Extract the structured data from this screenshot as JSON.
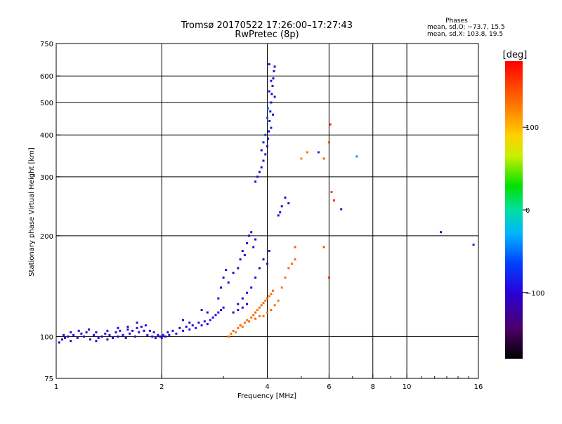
{
  "chart_data": {
    "type": "scatter",
    "title": "Tromsø 20170522 17:26:00–17:27:43",
    "subtitle": "RwPretec (8p)",
    "xlabel": "Frequency [MHz]",
    "ylabel": "Stationary phase Virtual Height [km]",
    "x_scale": "log",
    "y_scale": "log",
    "xlim": [
      1,
      16
    ],
    "ylim": [
      75,
      750
    ],
    "x_ticks": [
      1,
      2,
      4,
      6,
      8,
      10,
      16
    ],
    "x_tick_labels": [
      "1",
      "2",
      "4",
      "6",
      "8",
      "10",
      "16"
    ],
    "y_ticks": [
      75,
      100,
      200,
      300,
      400,
      500,
      600,
      750
    ],
    "y_tick_labels": [
      "75",
      "100",
      "200",
      "300",
      "400",
      "500",
      "600",
      "750"
    ],
    "grid": true,
    "phase_stats": {
      "heading": "Phases",
      "line_o": "mean, sd,O: −73.7, 15.5",
      "line_x": "mean, sd,X: 103.8, 19.5"
    },
    "colorbar": {
      "label": "[deg]",
      "range": [
        -180,
        180
      ],
      "ticks": [
        100,
        0,
        -100
      ],
      "tick_labels": [
        "100",
        "0",
        "−100"
      ]
    },
    "series": [
      {
        "role": "low-band echoes",
        "points": [
          [
            1.02,
            96,
            -95
          ],
          [
            1.04,
            98,
            -100
          ],
          [
            1.06,
            99,
            -98
          ],
          [
            1.08,
            100,
            -105
          ],
          [
            1.1,
            97,
            -92
          ],
          [
            1.12,
            101,
            -100
          ],
          [
            1.15,
            99,
            -96
          ],
          [
            1.18,
            102,
            -104
          ],
          [
            1.2,
            100,
            -95
          ],
          [
            1.22,
            103,
            -100
          ],
          [
            1.25,
            98,
            -90
          ],
          [
            1.28,
            101,
            -102
          ],
          [
            1.3,
            97,
            -100
          ],
          [
            1.32,
            99,
            -88
          ],
          [
            1.35,
            100,
            -100
          ],
          [
            1.38,
            102,
            -95
          ],
          [
            1.4,
            98,
            -110
          ],
          [
            1.42,
            101,
            -98
          ],
          [
            1.45,
            99,
            -94
          ],
          [
            1.48,
            103,
            -100
          ],
          [
            1.5,
            100,
            -96
          ],
          [
            1.52,
            104,
            -100
          ],
          [
            1.55,
            101,
            -92
          ],
          [
            1.58,
            99,
            -98
          ],
          [
            1.6,
            105,
            -100
          ],
          [
            1.62,
            102,
            -94
          ],
          [
            1.65,
            104,
            -100
          ],
          [
            1.68,
            100,
            -90
          ],
          [
            1.7,
            106,
            -98
          ],
          [
            1.72,
            103,
            -92
          ],
          [
            1.75,
            107,
            -96
          ],
          [
            1.78,
            104,
            -100
          ],
          [
            1.8,
            108,
            -94
          ],
          [
            1.82,
            101,
            -90
          ],
          [
            1.85,
            104,
            -98
          ],
          [
            1.88,
            100,
            -92
          ],
          [
            1.9,
            103,
            -96
          ],
          [
            1.92,
            99,
            -90
          ],
          [
            1.95,
            101,
            -94
          ],
          [
            1.98,
            100,
            -100
          ],
          [
            2.0,
            99,
            -92
          ],
          [
            2.02,
            101,
            -88
          ],
          [
            2.05,
            100,
            -96
          ],
          [
            2.08,
            103,
            -94
          ],
          [
            2.1,
            101,
            -90
          ],
          [
            2.15,
            104,
            -98
          ],
          [
            2.2,
            102,
            -92
          ],
          [
            2.25,
            106,
            -100
          ],
          [
            2.3,
            104,
            -88
          ],
          [
            2.35,
            107,
            -96
          ],
          [
            2.4,
            105,
            -90
          ],
          [
            2.45,
            108,
            -100
          ],
          [
            2.5,
            106,
            -92
          ],
          [
            2.55,
            110,
            -98
          ],
          [
            2.6,
            108,
            -88
          ],
          [
            2.65,
            111,
            -96
          ],
          [
            2.7,
            109,
            -100
          ],
          [
            2.75,
            112,
            -90
          ],
          [
            2.8,
            114,
            -98
          ],
          [
            2.85,
            116,
            -92
          ],
          [
            2.9,
            118,
            -100
          ],
          [
            2.95,
            120,
            -94
          ],
          [
            3.0,
            122,
            -98
          ],
          [
            1.05,
            101,
            -100
          ],
          [
            1.1,
            103,
            -102
          ],
          [
            1.16,
            104,
            -98
          ],
          [
            1.24,
            105,
            -104
          ],
          [
            1.3,
            103,
            -96
          ],
          [
            1.4,
            104,
            -100
          ],
          [
            1.5,
            106,
            -98
          ],
          [
            1.6,
            107,
            -96
          ],
          [
            1.7,
            110,
            -92
          ],
          [
            2.3,
            112,
            -100
          ],
          [
            2.4,
            110,
            -104
          ],
          [
            2.6,
            120,
            -106
          ],
          [
            2.7,
            118,
            -102
          ],
          [
            2.9,
            130,
            -100
          ],
          [
            2.95,
            140,
            -104
          ],
          [
            3.0,
            150,
            -106
          ],
          [
            3.05,
            158,
            -104
          ],
          [
            3.1,
            145,
            -100
          ],
          [
            3.2,
            155,
            -102
          ],
          [
            3.3,
            160,
            -98
          ],
          [
            3.35,
            170,
            -100
          ],
          [
            3.4,
            180,
            -104
          ],
          [
            3.45,
            175,
            -98
          ],
          [
            3.5,
            190,
            -100
          ],
          [
            3.55,
            200,
            -106
          ],
          [
            3.6,
            205,
            -102
          ],
          [
            3.65,
            185,
            -98
          ],
          [
            3.7,
            195,
            -100
          ],
          [
            3.3,
            125,
            -105
          ],
          [
            3.4,
            130,
            -102
          ],
          [
            3.5,
            135,
            -106
          ],
          [
            3.6,
            140,
            -100
          ],
          [
            3.7,
            150,
            -104
          ],
          [
            3.8,
            160,
            -100
          ],
          [
            3.9,
            170,
            -98
          ],
          [
            4.0,
            165,
            -100
          ],
          [
            4.05,
            180,
            -96
          ],
          [
            3.2,
            118,
            -110
          ],
          [
            3.3,
            120,
            -105
          ],
          [
            3.4,
            122,
            -100
          ],
          [
            3.5,
            125,
            -108
          ]
        ]
      },
      {
        "role": "mid-band warm echoes",
        "points": [
          [
            3.1,
            100,
            130
          ],
          [
            3.15,
            102,
            128
          ],
          [
            3.2,
            104,
            135
          ],
          [
            3.25,
            103,
            125
          ],
          [
            3.3,
            106,
            130
          ],
          [
            3.35,
            108,
            138
          ],
          [
            3.4,
            107,
            128
          ],
          [
            3.45,
            110,
            132
          ],
          [
            3.5,
            112,
            126
          ],
          [
            3.55,
            111,
            135
          ],
          [
            3.6,
            114,
            128
          ],
          [
            3.65,
            116,
            132
          ],
          [
            3.7,
            118,
            136
          ],
          [
            3.75,
            120,
            126
          ],
          [
            3.8,
            122,
            130
          ],
          [
            3.85,
            124,
            134
          ],
          [
            3.9,
            126,
            128
          ],
          [
            3.95,
            128,
            132
          ],
          [
            4.0,
            130,
            136
          ],
          [
            4.05,
            132,
            126
          ],
          [
            4.1,
            134,
            130
          ],
          [
            4.15,
            137,
            134
          ],
          [
            3.9,
            115,
            128
          ],
          [
            4.0,
            118,
            132
          ],
          [
            4.1,
            120,
            136
          ],
          [
            4.2,
            124,
            130
          ],
          [
            4.3,
            128,
            126
          ],
          [
            3.7,
            113,
            135
          ],
          [
            3.8,
            115,
            130
          ],
          [
            4.4,
            140,
            128
          ],
          [
            4.5,
            150,
            132
          ],
          [
            4.6,
            160,
            136
          ],
          [
            4.7,
            165,
            130
          ],
          [
            4.8,
            170,
            134
          ]
        ]
      },
      {
        "role": "upper trace",
        "points": [
          [
            3.7,
            290,
            -100
          ],
          [
            3.75,
            300,
            -98
          ],
          [
            3.8,
            310,
            -102
          ],
          [
            3.85,
            320,
            -96
          ],
          [
            3.9,
            335,
            -100
          ],
          [
            3.95,
            350,
            -104
          ],
          [
            4.0,
            370,
            -98
          ],
          [
            4.02,
            390,
            -100
          ],
          [
            4.04,
            410,
            -96
          ],
          [
            4.06,
            440,
            -100
          ],
          [
            4.08,
            470,
            -104
          ],
          [
            4.1,
            500,
            -98
          ],
          [
            4.12,
            530,
            -100
          ],
          [
            4.14,
            560,
            -102
          ],
          [
            4.16,
            590,
            -100
          ],
          [
            4.18,
            620,
            -96
          ],
          [
            4.2,
            640,
            -100
          ],
          [
            4.05,
            650,
            -110
          ],
          [
            4.0,
            450,
            -60
          ],
          [
            4.02,
            480,
            -50
          ],
          [
            3.95,
            400,
            -70
          ],
          [
            3.9,
            380,
            -80
          ],
          [
            4.1,
            420,
            -90
          ],
          [
            4.15,
            460,
            -100
          ],
          [
            4.2,
            520,
            -104
          ],
          [
            3.85,
            360,
            -94
          ],
          [
            4.05,
            540,
            -92
          ],
          [
            4.1,
            580,
            -98
          ]
        ]
      },
      {
        "role": "scattered points",
        "points": [
          [
            5.6,
            355,
            -80
          ],
          [
            5.8,
            340,
            140
          ],
          [
            6.0,
            380,
            150
          ],
          [
            6.05,
            430,
            155
          ],
          [
            6.1,
            270,
            150
          ],
          [
            6.2,
            255,
            160
          ],
          [
            6.5,
            240,
            -110
          ],
          [
            7.2,
            345,
            -40
          ],
          [
            4.5,
            260,
            -100
          ],
          [
            4.6,
            250,
            -98
          ],
          [
            5.2,
            355,
            130
          ],
          [
            5.0,
            340,
            120
          ],
          [
            12.5,
            205,
            -110
          ],
          [
            15.5,
            188,
            -80
          ],
          [
            4.8,
            185,
            140
          ],
          [
            6.0,
            150,
            160
          ],
          [
            5.8,
            185,
            150
          ],
          [
            4.4,
            245,
            -102
          ],
          [
            4.35,
            235,
            -100
          ],
          [
            4.3,
            230,
            -104
          ]
        ]
      }
    ]
  }
}
